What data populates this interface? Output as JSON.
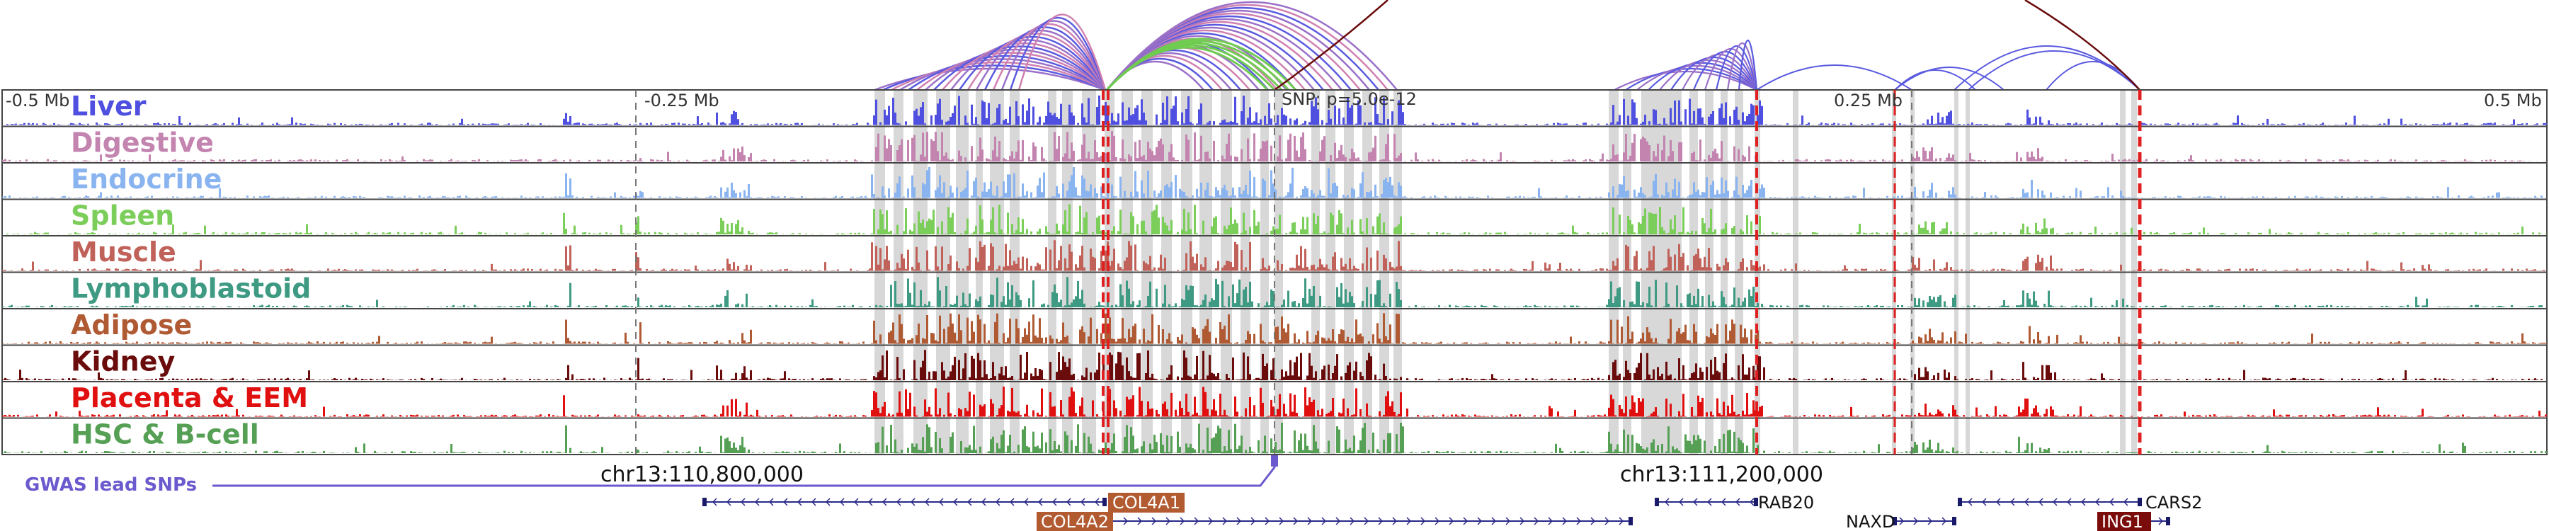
{
  "figure": {
    "title_snp": "SNP: p=5.0e-12",
    "scale_labels": [
      "-0.5 Mb",
      "-0.25 Mb",
      "0.25 Mb",
      "0.5 Mb"
    ],
    "coordinate_labels": [
      "chr13:110,800,000",
      "chr13:111,200,000"
    ],
    "gwas_label": "GWAS lead SNPs"
  },
  "tracks": [
    {
      "name": "Liver",
      "color": "#4f4fe0"
    },
    {
      "name": "Digestive",
      "color": "#c384b0"
    },
    {
      "name": "Endocrine",
      "color": "#8ab4f0"
    },
    {
      "name": "Spleen",
      "color": "#7cce5a"
    },
    {
      "name": "Muscle",
      "color": "#c0625a"
    },
    {
      "name": "Lymphoblastoid",
      "color": "#3e9a82"
    },
    {
      "name": "Adipose",
      "color": "#b05a34"
    },
    {
      "name": "Kidney",
      "color": "#6a0c0c"
    },
    {
      "name": "Placenta & EEM",
      "color": "#e01010"
    },
    {
      "name": "HSC & B-cell",
      "color": "#55a055"
    }
  ],
  "genes": [
    {
      "name": "COL4A1",
      "label_style": "boxed",
      "box_color": "#b25a30"
    },
    {
      "name": "COL4A2",
      "label_style": "boxed",
      "box_color": "#b25a30"
    },
    {
      "name": "RAB20",
      "label_style": "plain"
    },
    {
      "name": "NAXD",
      "label_style": "plain"
    },
    {
      "name": "CARS2",
      "label_style": "plain"
    },
    {
      "name": "ING1",
      "label_style": "boxed",
      "box_color": "#7a0c0c"
    }
  ],
  "colors": {
    "frame": "#444444",
    "highlight": "#d8d8d8",
    "red_line": "#e02020",
    "gwas": "#6a5acd",
    "arc_purple": "#9a70c8",
    "arc_blue": "#5a5ae0",
    "arc_green": "#70cc50",
    "arc_pink": "#d080b0",
    "arc_dark": "#6a0c0c"
  }
}
